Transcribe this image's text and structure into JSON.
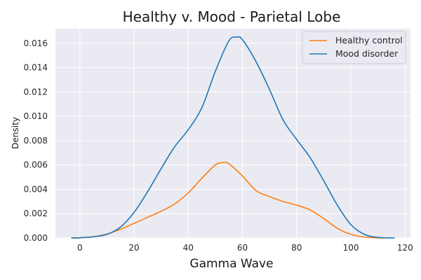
{
  "chart_data": {
    "type": "line",
    "title": "Healthy v. Mood - Parietal Lobe",
    "xlabel": "Gamma Wave",
    "ylabel": "Density",
    "xlim": [
      -9,
      122
    ],
    "ylim": [
      0,
      0.0172
    ],
    "xticks": [
      0,
      20,
      40,
      60,
      80,
      100,
      120
    ],
    "yticks": [
      0.0,
      0.002,
      0.004,
      0.006,
      0.008,
      0.01,
      0.012,
      0.014,
      0.016
    ],
    "grid": true,
    "legend_position": "top-right",
    "background": "#eaeaf2",
    "series": [
      {
        "name": "Healthy control",
        "color": "#ff7f0e",
        "x": [
          -3,
          0,
          5,
          10,
          15,
          20,
          25,
          30,
          35,
          40,
          45,
          50,
          53,
          55,
          60,
          65,
          70,
          75,
          80,
          85,
          90,
          95,
          100,
          105,
          110,
          113
        ],
        "y": [
          0.0,
          2e-05,
          0.0001,
          0.00033,
          0.00072,
          0.0012,
          0.0017,
          0.0022,
          0.0028,
          0.0037,
          0.0049,
          0.006,
          0.0062,
          0.0061,
          0.0051,
          0.0039,
          0.0034,
          0.003,
          0.0027,
          0.0023,
          0.0016,
          0.0008,
          0.0003,
          8e-05,
          1e-05,
          0.0
        ]
      },
      {
        "name": "Mood disorder",
        "color": "#1f77b4",
        "x": [
          -3,
          0,
          5,
          10,
          15,
          20,
          25,
          30,
          35,
          40,
          45,
          50,
          55,
          58,
          60,
          65,
          70,
          75,
          80,
          85,
          90,
          95,
          100,
          105,
          110,
          116
        ],
        "y": [
          0.0,
          2e-05,
          0.0001,
          0.0003,
          0.0009,
          0.0021,
          0.0038,
          0.0057,
          0.0075,
          0.0089,
          0.0107,
          0.0137,
          0.0162,
          0.0165,
          0.0163,
          0.0145,
          0.0122,
          0.0097,
          0.0081,
          0.0066,
          0.0047,
          0.0027,
          0.0011,
          0.0003,
          5e-05,
          0.0
        ]
      }
    ]
  }
}
